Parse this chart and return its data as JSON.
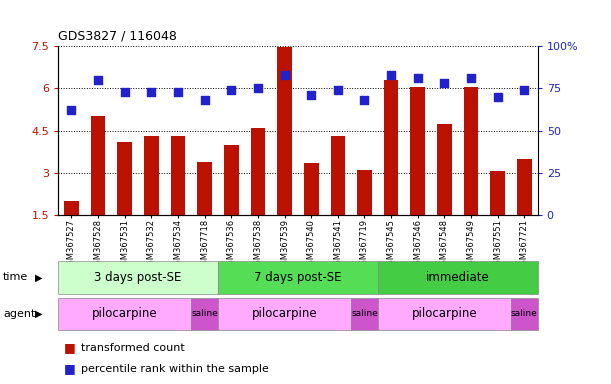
{
  "title": "GDS3827 / 116048",
  "samples": [
    "GSM367527",
    "GSM367528",
    "GSM367531",
    "GSM367532",
    "GSM367534",
    "GSM367718",
    "GSM367536",
    "GSM367538",
    "GSM367539",
    "GSM367540",
    "GSM367541",
    "GSM367719",
    "GSM367545",
    "GSM367546",
    "GSM367548",
    "GSM367549",
    "GSM367551",
    "GSM367721"
  ],
  "bar_tops": [
    2.0,
    5.0,
    4.1,
    4.3,
    4.3,
    3.4,
    4.0,
    4.6,
    7.45,
    3.35,
    4.3,
    3.1,
    6.3,
    6.05,
    4.75,
    6.05,
    3.05,
    3.5
  ],
  "dot_percentiles": [
    62,
    80,
    73,
    73,
    73,
    68,
    74,
    75,
    83,
    71,
    74,
    68,
    83,
    81,
    78,
    81,
    70,
    74
  ],
  "bar_color": "#bb1100",
  "dot_color": "#2222cc",
  "ylim_left": [
    1.5,
    7.5
  ],
  "ylim_right": [
    0,
    100
  ],
  "yticks_left": [
    1.5,
    3.0,
    4.5,
    6.0,
    7.5
  ],
  "yticks_right": [
    0,
    25,
    50,
    75,
    100
  ],
  "ytick_labels_left": [
    "1.5",
    "3",
    "4.5",
    "6",
    "7.5"
  ],
  "ytick_labels_right": [
    "0",
    "25",
    "50",
    "75",
    "100%"
  ],
  "time_groups": [
    {
      "label": "3 days post-SE",
      "start": 0,
      "end": 6,
      "color": "#ccffcc"
    },
    {
      "label": "7 days post-SE",
      "start": 6,
      "end": 12,
      "color": "#55dd55"
    },
    {
      "label": "immediate",
      "start": 12,
      "end": 18,
      "color": "#44cc44"
    }
  ],
  "agent_groups": [
    {
      "label": "pilocarpine",
      "start": 0,
      "end": 5,
      "color": "#ffaaff"
    },
    {
      "label": "saline",
      "start": 5,
      "end": 6,
      "color": "#cc55cc"
    },
    {
      "label": "pilocarpine",
      "start": 6,
      "end": 11,
      "color": "#ffaaff"
    },
    {
      "label": "saline",
      "start": 11,
      "end": 12,
      "color": "#cc55cc"
    },
    {
      "label": "pilocarpine",
      "start": 12,
      "end": 17,
      "color": "#ffaaff"
    },
    {
      "label": "saline",
      "start": 17,
      "end": 18,
      "color": "#cc55cc"
    }
  ],
  "legend_bar_label": "transformed count",
  "legend_dot_label": "percentile rank within the sample",
  "time_label": "time",
  "agent_label": "agent",
  "background_color": "#ffffff",
  "bar_width": 0.55,
  "bar_bottom": 1.5,
  "dot_marker_size": 30
}
